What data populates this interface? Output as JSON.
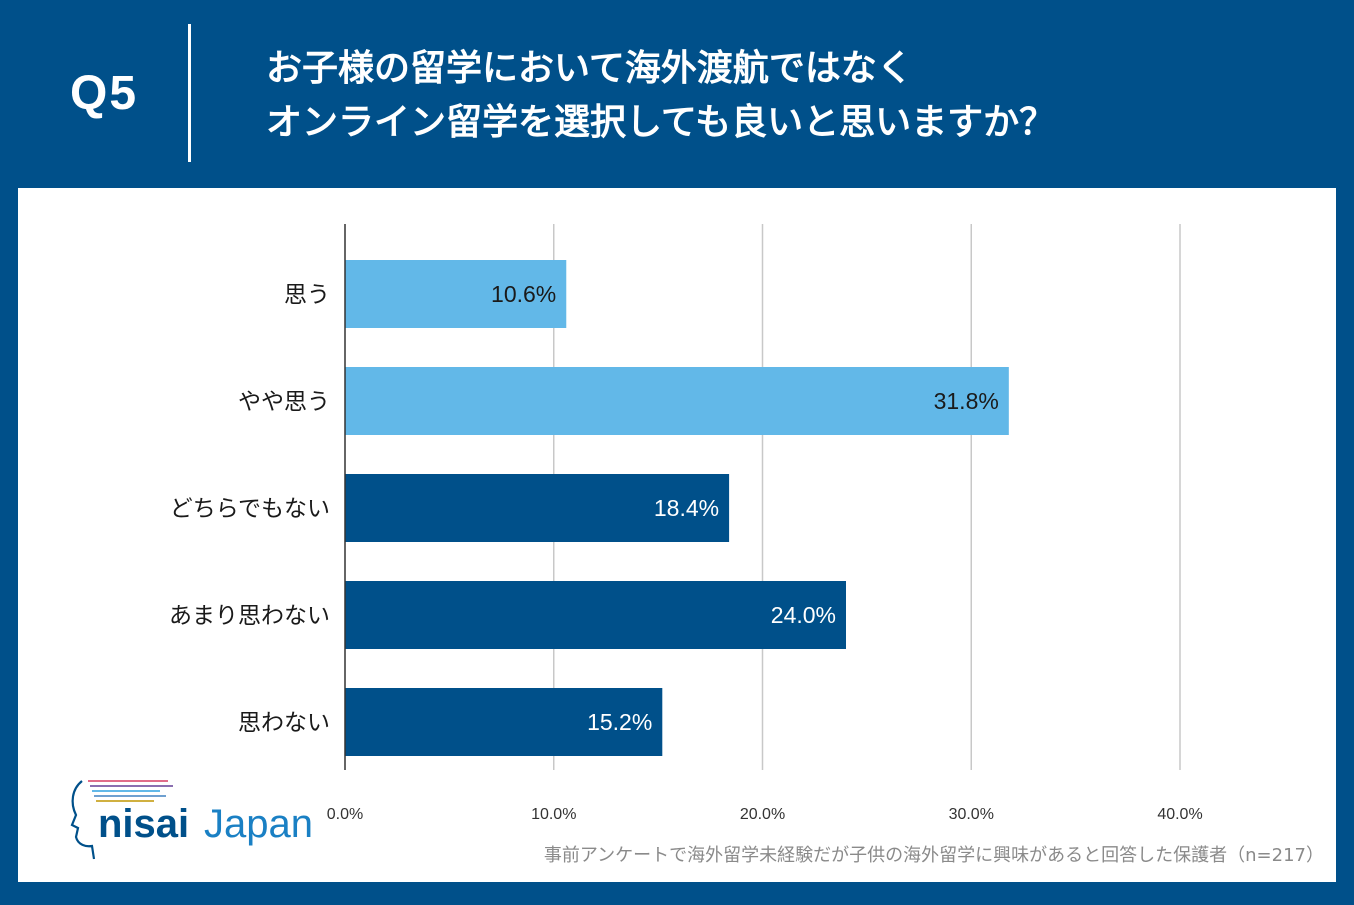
{
  "header": {
    "q_label": "Q5",
    "title_line1": "お子様の留学において海外渡航ではなく",
    "title_line2": "オンライン留学を選択しても良いと思いますか？"
  },
  "colors": {
    "background": "#00508a",
    "panel": "#ffffff",
    "bar_positive": "#62b8e8",
    "bar_negative": "#00508a",
    "grid": "#c8c8c8"
  },
  "chart_data": {
    "type": "bar",
    "orientation": "horizontal",
    "categories": [
      "思う",
      "やや思う",
      "どちらでもない",
      "あまり思わない",
      "思わない"
    ],
    "values": [
      10.6,
      31.8,
      18.4,
      24.0,
      15.2
    ],
    "value_labels": [
      "10.6%",
      "31.8%",
      "18.4%",
      "24.0%",
      "15.2%"
    ],
    "bar_colors": [
      "#62b8e8",
      "#62b8e8",
      "#00508a",
      "#00508a",
      "#00508a"
    ],
    "label_colors": [
      "#1a1a1a",
      "#1a1a1a",
      "#ffffff",
      "#ffffff",
      "#ffffff"
    ],
    "xlim": [
      0,
      40
    ],
    "xticks": [
      0,
      10,
      20,
      30,
      40
    ],
    "xtick_labels": [
      "0.0%",
      "10.0%",
      "20.0%",
      "30.0%",
      "40.0%"
    ],
    "grid": true,
    "title": "",
    "xlabel": "",
    "ylabel": ""
  },
  "logo": {
    "text_nisai": "nisai",
    "text_japan": "Japan",
    "icon": "head-profile-icon"
  },
  "footnote": "事前アンケートで海外留学未経験だが子供の海外留学に興味があると回答した保護者（n=217）"
}
